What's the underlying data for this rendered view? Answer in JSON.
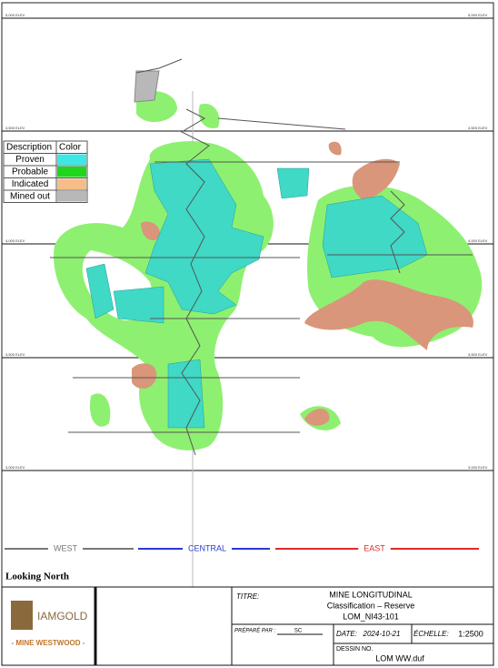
{
  "elevations": [
    "5,000 ELEV",
    "4,500 ELEV",
    "4,000 ELEV",
    "3,500 ELEV",
    "3,000 ELEV"
  ],
  "legend": {
    "header": [
      "Description",
      "Color"
    ],
    "rows": [
      {
        "label": "Proven",
        "color": "#3ee6e6"
      },
      {
        "label": "Probable",
        "color": "#1fd61f"
      },
      {
        "label": "Indicated",
        "color": "#f5bd88"
      },
      {
        "label": "Mined out",
        "color": "#b8b8b8"
      }
    ]
  },
  "zones": [
    {
      "label": "WEST",
      "color": "#777777"
    },
    {
      "label": "CENTRAL",
      "color": "#2a3ad6"
    },
    {
      "label": "EAST",
      "color": "#e02a2a"
    }
  ],
  "view_label": "Looking North",
  "logo": {
    "name": "IAMGOLD",
    "subtitle": "- MINE WESTWOOD -"
  },
  "title_block": {
    "titre_label": "TITRE:",
    "title": "MINE LONGITUDINAL",
    "subtitle": "Classification – Reserve",
    "code": "LOM_NI43-101",
    "prepared_label": "PRÉPARÉ PAR :",
    "prepared_by": "SC",
    "date_label": "DATE:",
    "date": "2024-10-21",
    "scale_label": "ÉCHELLE:",
    "scale": "1:2500",
    "drawing_label": "DESSIN NO.",
    "drawing": "LOM WW.duf"
  }
}
